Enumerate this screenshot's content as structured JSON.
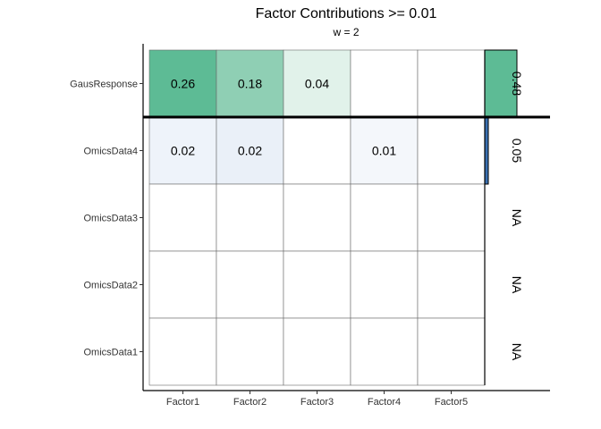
{
  "chart_data": {
    "type": "heatmap",
    "title": "Factor Contributions >= 0.01",
    "subtitle": "w = 2",
    "x_categories": [
      "Factor1",
      "Factor2",
      "Factor3",
      "Factor4",
      "Factor5"
    ],
    "y_categories": [
      "GausResponse",
      "OmicsData4",
      "OmicsData3",
      "OmicsData2",
      "OmicsData1"
    ],
    "cells": [
      {
        "row": "GausResponse",
        "col": "Factor1",
        "value": 0.26,
        "label": "0.26",
        "color": "#5dbb95"
      },
      {
        "row": "GausResponse",
        "col": "Factor2",
        "value": 0.18,
        "label": "0.18",
        "color": "#8fcfb4"
      },
      {
        "row": "GausResponse",
        "col": "Factor3",
        "value": 0.04,
        "label": "0.04",
        "color": "#e1f2ea"
      },
      {
        "row": "OmicsData4",
        "col": "Factor1",
        "value": 0.02,
        "label": "0.02",
        "color": "#eef3fa"
      },
      {
        "row": "OmicsData4",
        "col": "Factor2",
        "value": 0.02,
        "label": "0.02",
        "color": "#eaf0f8"
      },
      {
        "row": "OmicsData4",
        "col": "Factor4",
        "value": 0.01,
        "label": "0.01",
        "color": "#f4f7fb"
      }
    ],
    "totals": [
      {
        "row": "GausResponse",
        "value": 0.48,
        "label": "0.48",
        "color": "#5dbb95"
      },
      {
        "row": "OmicsData4",
        "value": 0.05,
        "label": "0.05",
        "color": "#3a6fb0"
      },
      {
        "row": "OmicsData3",
        "value": null,
        "label": "NA"
      },
      {
        "row": "OmicsData2",
        "value": null,
        "label": "NA"
      },
      {
        "row": "OmicsData1",
        "value": null,
        "label": "NA"
      }
    ],
    "totals_max": 0.48,
    "grid": true,
    "legend": "none"
  }
}
